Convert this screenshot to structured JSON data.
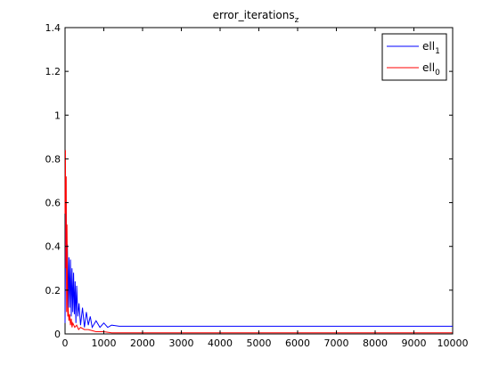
{
  "chart_data": {
    "type": "line",
    "title": {
      "base": "error_iterations",
      "sub": "z"
    },
    "xlabel": "",
    "ylabel": "",
    "xlim": [
      0,
      10000
    ],
    "ylim": [
      0,
      1.4
    ],
    "xticks": [
      0,
      1000,
      2000,
      3000,
      4000,
      5000,
      6000,
      7000,
      8000,
      9000,
      10000
    ],
    "yticks": [
      0,
      0.2,
      0.4,
      0.6,
      0.8,
      1,
      1.2,
      1.4
    ],
    "grid": false,
    "legend_position": "top-right",
    "series": [
      {
        "legend": {
          "base": "ell",
          "sub": "1"
        },
        "color": "#0000ff",
        "x": [
          0,
          20,
          40,
          60,
          80,
          100,
          120,
          140,
          160,
          180,
          200,
          220,
          240,
          260,
          280,
          300,
          330,
          360,
          400,
          450,
          500,
          550,
          600,
          650,
          700,
          800,
          900,
          1000,
          1100,
          1200,
          1400,
          1600,
          1800,
          2000,
          3000,
          5000,
          10000
        ],
        "y": [
          0.05,
          0.66,
          0.38,
          0.41,
          0.1,
          0.35,
          0.12,
          0.34,
          0.08,
          0.3,
          0.1,
          0.28,
          0.09,
          0.24,
          0.05,
          0.22,
          0.08,
          0.14,
          0.04,
          0.12,
          0.03,
          0.1,
          0.04,
          0.08,
          0.03,
          0.06,
          0.03,
          0.05,
          0.03,
          0.04,
          0.035,
          0.035,
          0.035,
          0.035,
          0.035,
          0.035,
          0.035
        ]
      },
      {
        "legend": {
          "base": "ell",
          "sub": "0"
        },
        "color": "#ff0000",
        "x": [
          0,
          10,
          20,
          30,
          40,
          50,
          60,
          70,
          80,
          100,
          120,
          140,
          160,
          180,
          200,
          250,
          300,
          350,
          400,
          500,
          600,
          800,
          1000,
          1200,
          1500,
          2000,
          5000,
          10000
        ],
        "y": [
          0.55,
          0.84,
          0.3,
          0.72,
          0.1,
          0.5,
          0.3,
          0.08,
          0.12,
          0.06,
          0.09,
          0.04,
          0.07,
          0.03,
          0.05,
          0.03,
          0.04,
          0.02,
          0.03,
          0.02,
          0.02,
          0.01,
          0.01,
          0.005,
          0.005,
          0.005,
          0.005,
          0.005
        ]
      }
    ]
  }
}
